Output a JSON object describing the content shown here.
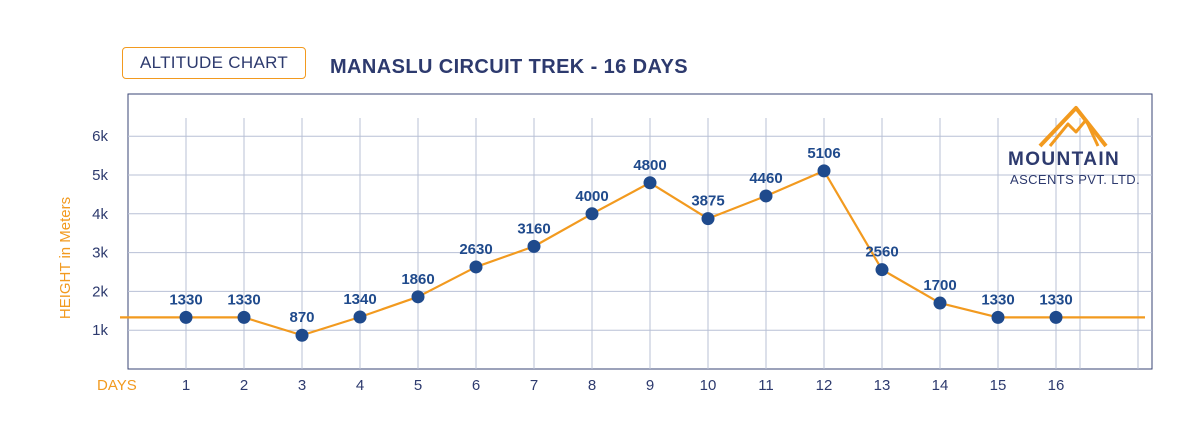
{
  "header": {
    "badge_label": "ALTITUDE CHART",
    "title": "MANASLU CIRCUIT TREK - 16 DAYS"
  },
  "logo": {
    "word": "MOUNTAIN",
    "sub": "ASCENTS PVT. LTD.",
    "icon": "mountain-peaks-icon"
  },
  "colors": {
    "line": "#f29a1f",
    "marker": "#1f4a8c",
    "text": "#2d3a6e",
    "grid": "#b8c0d6"
  },
  "chart_data": {
    "type": "line",
    "xlabel": "DAYS",
    "ylabel": "HEIGHT in Meters",
    "x": [
      1,
      2,
      3,
      4,
      5,
      6,
      7,
      8,
      9,
      10,
      11,
      12,
      13,
      14,
      15,
      16
    ],
    "values": [
      1330,
      1330,
      870,
      1340,
      1860,
      2630,
      3160,
      4000,
      4800,
      3875,
      4460,
      5106,
      2560,
      1700,
      1330,
      1330
    ],
    "data_labels": [
      "1330",
      "1330",
      "870",
      "1340",
      "1860",
      "2630",
      "3160",
      "4000",
      "4800",
      "3875",
      "4460",
      "5106",
      "2560",
      "1700",
      "1330",
      "1330"
    ],
    "ytick_values": [
      1000,
      2000,
      3000,
      4000,
      5000,
      6000
    ],
    "ytick_labels": [
      "1k",
      "2k",
      "3k",
      "4k",
      "5k",
      "6k"
    ],
    "xtick_labels": [
      "1",
      "2",
      "3",
      "4",
      "5",
      "6",
      "7",
      "8",
      "9",
      "10",
      "11",
      "12",
      "13",
      "14",
      "15",
      "16"
    ],
    "ylim": [
      0,
      7000
    ],
    "grid": true,
    "legend": "none"
  }
}
